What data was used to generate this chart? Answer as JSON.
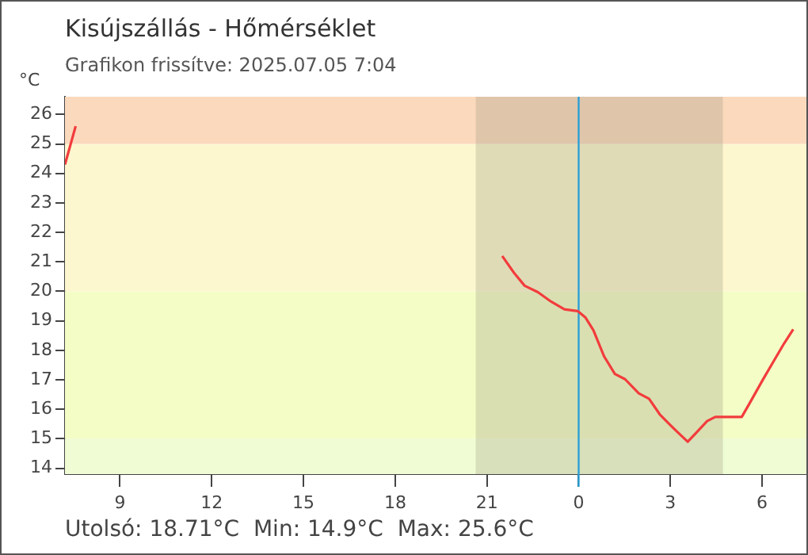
{
  "chart_data": {
    "type": "line",
    "title": "Kisújszállás - Hőmérséklet",
    "subtitle": "Grafikon frissítve: 2025.07.05 7:04",
    "ylabel": "°C",
    "annotations": [
      "Utolsó: 18.71°C  Min: 14.9°C  Max: 25.6°C"
    ],
    "series": [
      {
        "color": "#f23c3c",
        "x": [
          "2025-07-04T07:12",
          "2025-07-04T07:33",
          "2025-07-04T14:00",
          "2025-07-04T21:30",
          "2025-07-04T21:53",
          "2025-07-04T22:14",
          "2025-07-04T22:40",
          "2025-07-04T23:06",
          "2025-07-04T23:32",
          "2025-07-04T23:58",
          "2025-07-05T00:13",
          "2025-07-05T00:29",
          "2025-07-05T00:50",
          "2025-07-05T01:11",
          "2025-07-05T01:31",
          "2025-07-05T01:58",
          "2025-07-05T02:18",
          "2025-07-05T02:39",
          "2025-07-05T02:59",
          "2025-07-05T03:15",
          "2025-07-05T03:34",
          "2025-07-05T03:51",
          "2025-07-05T04:12",
          "2025-07-05T04:28",
          "2025-07-05T05:20",
          "2025-07-05T05:35",
          "2025-07-05T06:01",
          "2025-07-05T06:22",
          "2025-07-05T06:43",
          "2025-07-05T07:01"
        ],
        "values": [
          24.3,
          25.6,
          null,
          21.2,
          20.63,
          20.19,
          19.97,
          19.65,
          19.39,
          19.33,
          19.12,
          18.68,
          17.79,
          17.2,
          17.02,
          16.54,
          16.36,
          15.83,
          15.48,
          15.21,
          14.9,
          15.21,
          15.6,
          15.74,
          15.74,
          16.19,
          16.99,
          17.61,
          18.23,
          18.71
        ]
      }
    ],
    "xlim": [
      "2025-07-04T07:12",
      "2025-07-05T07:30"
    ],
    "xticks": [
      {
        "value": "2025-07-04T09:00",
        "label": "9"
      },
      {
        "value": "2025-07-04T12:00",
        "label": "12"
      },
      {
        "value": "2025-07-04T15:00",
        "label": "15"
      },
      {
        "value": "2025-07-04T18:00",
        "label": "18"
      },
      {
        "value": "2025-07-04T21:00",
        "label": "21"
      },
      {
        "value": "2025-07-05T00:00",
        "label": "0"
      },
      {
        "value": "2025-07-05T03:00",
        "label": "3"
      },
      {
        "value": "2025-07-05T06:00",
        "label": "6"
      }
    ],
    "ylim": [
      13.8,
      26.6
    ],
    "yticks": [
      14,
      15,
      16,
      17,
      18,
      19,
      20,
      21,
      22,
      23,
      24,
      25,
      26
    ],
    "bands": [
      {
        "axis": "y",
        "from": 13.8,
        "to": 15,
        "color": "#effcd4"
      },
      {
        "axis": "y",
        "from": 15,
        "to": 20,
        "color": "#f4fdc6"
      },
      {
        "axis": "y",
        "from": 20,
        "to": 25,
        "color": "#fdf7cf"
      },
      {
        "axis": "y",
        "from": 25,
        "to": 26.6,
        "color": "#fbd9bd"
      },
      {
        "axis": "x",
        "from": "2025-07-04T20:38",
        "to": "2025-07-05T04:43",
        "color": "#a09a80"
      }
    ],
    "ref_lines": [
      {
        "axis": "x",
        "value": "2025-07-05T00:00",
        "color": "#2a9fd6"
      }
    ],
    "grid": false,
    "legend": false,
    "marker": "none",
    "line_style": "solid"
  }
}
